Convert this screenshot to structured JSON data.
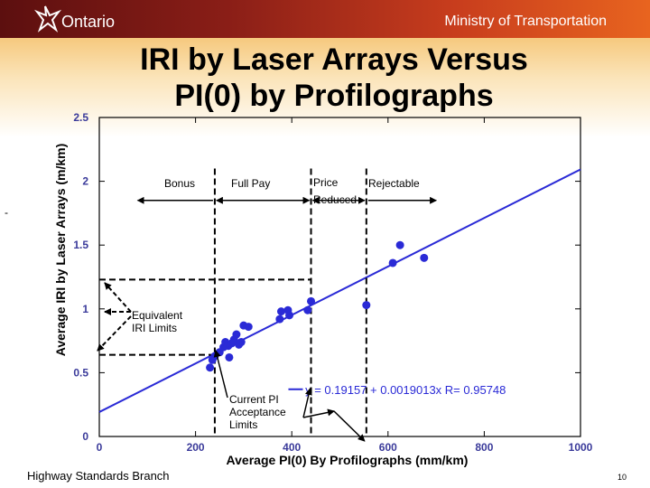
{
  "header": {
    "logo_text": "Ontario",
    "ministry": "Ministry of Transportation"
  },
  "page_title_line1": "IRI by Laser Arrays Versus",
  "page_title_line2": "PI(0) by Profilographs",
  "footer": {
    "branch": "Highway Standards Branch",
    "page_number": "10"
  },
  "stray_mark": "-",
  "colors": {
    "header_start": "#5c0f0f",
    "header_end": "#e8641f",
    "series": "#2a2ad6"
  },
  "chart_data": {
    "type": "scatter",
    "xlabel": "Average PI(0) By Profilographs (mm/km)",
    "ylabel": "Average IRI by Laser Arrays (m/km)",
    "xlim": [
      0,
      1000
    ],
    "ylim": [
      0,
      2.5
    ],
    "x_ticks": [
      0,
      200,
      400,
      600,
      800,
      1000
    ],
    "y_ticks": [
      0,
      0.5,
      1,
      1.5,
      2,
      2.5
    ],
    "x_tick_labels": [
      "0",
      "200",
      "400",
      "600",
      "800",
      "1000"
    ],
    "y_tick_labels": [
      "0",
      "0.5",
      "1",
      "1.5",
      "2",
      "2.5"
    ],
    "grid": false,
    "series": [
      {
        "color": "#2a2ad6",
        "points": [
          [
            230,
            0.54
          ],
          [
            235,
            0.6
          ],
          [
            240,
            0.63
          ],
          [
            250,
            0.66
          ],
          [
            258,
            0.7
          ],
          [
            262,
            0.74
          ],
          [
            268,
            0.71
          ],
          [
            275,
            0.73
          ],
          [
            280,
            0.76
          ],
          [
            285,
            0.8
          ],
          [
            290,
            0.72
          ],
          [
            295,
            0.74
          ],
          [
            270,
            0.62
          ],
          [
            300,
            0.87
          ],
          [
            310,
            0.86
          ],
          [
            375,
            0.92
          ],
          [
            378,
            0.98
          ],
          [
            395,
            0.95
          ],
          [
            392,
            0.99
          ],
          [
            433,
            0.99
          ],
          [
            440,
            1.06
          ],
          [
            555,
            1.03
          ],
          [
            610,
            1.36
          ],
          [
            625,
            1.5
          ],
          [
            675,
            1.4
          ]
        ]
      }
    ],
    "fit_line": {
      "intercept": 0.19157,
      "slope": 0.0019013,
      "label": "y = 0.19157 + 0.0019013x   R= 0.95748"
    },
    "zone_labels": [
      "Bonus",
      "Full Pay",
      "Price",
      "Reduced",
      "Rejectable"
    ],
    "zone_boundaries_x": [
      240,
      440,
      555
    ],
    "equivalent_iri_limits": [
      0.64,
      1.23
    ],
    "annotations": {
      "equivalent": [
        "Equivalent",
        "IRI Limits"
      ],
      "acceptance": [
        "Current PI",
        "Acceptance",
        "Limits"
      ]
    }
  }
}
